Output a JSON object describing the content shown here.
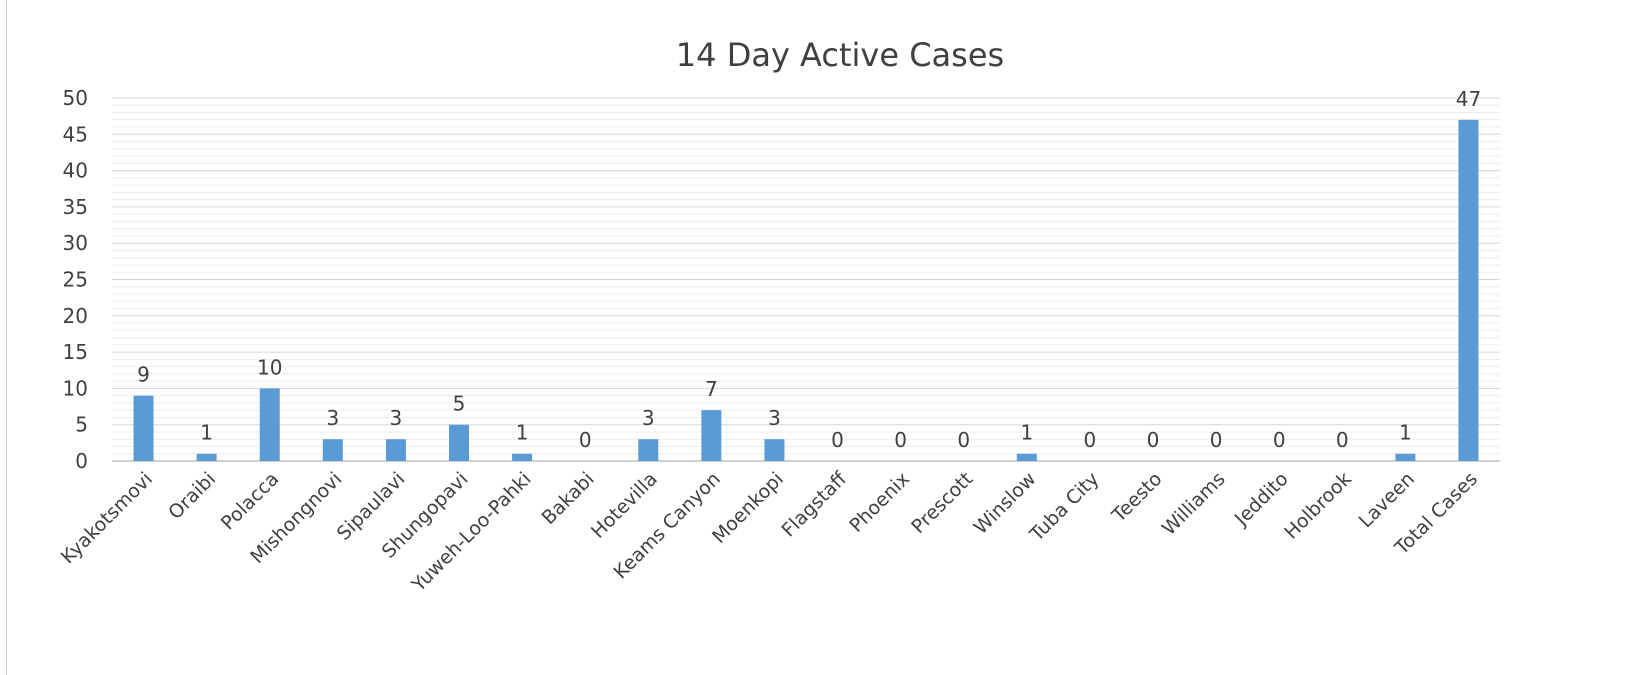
{
  "chart_data": {
    "type": "bar",
    "title": "14 Day Active Cases",
    "xlabel": "",
    "ylabel": "",
    "ylim": [
      0,
      50
    ],
    "yticks": [
      0,
      5,
      10,
      15,
      20,
      25,
      30,
      35,
      40,
      45,
      50
    ],
    "grid": true,
    "legend": "none",
    "bar_color": "#5b9bd5",
    "categories": [
      "Kyakotsmovi",
      "Oraibi",
      "Polacca",
      "Mishongnovi",
      "Sipaulavi",
      "Shungopavi",
      "Yuweh-Loo-Pahki",
      "Bakabi",
      "Hotevilla",
      "Keams Canyon",
      "Moenkopi",
      "Flagstaff",
      "Phoenix",
      "Prescott",
      "Winslow",
      "Tuba City",
      "Teesto",
      "Williams",
      "Jeddito",
      "Holbrook",
      "Laveen",
      "Total Cases"
    ],
    "values": [
      9,
      1,
      10,
      3,
      3,
      5,
      1,
      0,
      3,
      7,
      3,
      0,
      0,
      0,
      1,
      0,
      0,
      0,
      0,
      0,
      1,
      47
    ]
  }
}
